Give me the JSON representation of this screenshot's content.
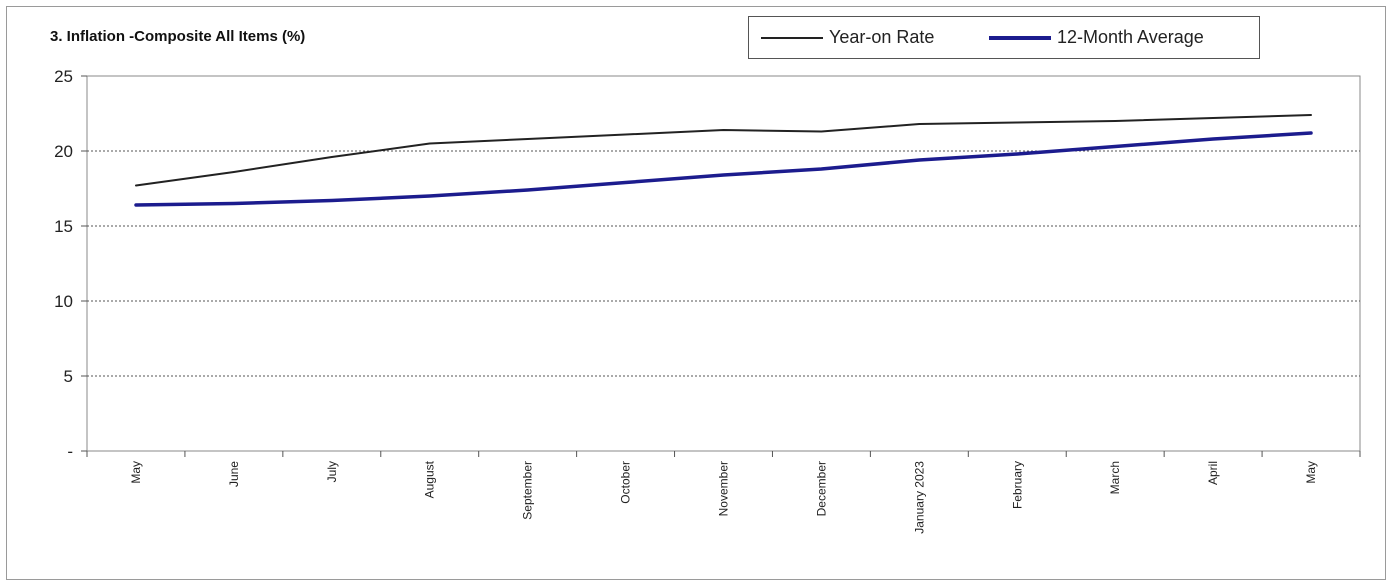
{
  "chart_data": {
    "type": "line",
    "title": "3. Inflation -Composite All Items (%)",
    "categories": [
      "May",
      "June",
      "July",
      "August",
      "September",
      "October",
      "November",
      "December",
      "January 2023",
      "February",
      "March",
      "April",
      "May"
    ],
    "series": [
      {
        "name": "Year-on Rate",
        "color": "#222222",
        "values": [
          17.7,
          18.6,
          19.6,
          20.5,
          20.8,
          21.1,
          21.4,
          21.3,
          21.8,
          21.9,
          22.0,
          22.2,
          22.4
        ]
      },
      {
        "name": "12-Month Average",
        "color": "#1c1c8e",
        "values": [
          16.4,
          16.5,
          16.7,
          17.0,
          17.4,
          17.9,
          18.4,
          18.8,
          19.4,
          19.8,
          20.3,
          20.8,
          21.2
        ]
      }
    ],
    "y_ticks": [
      "-",
      "5",
      "10",
      "15",
      "20",
      "25"
    ],
    "ylim": [
      0,
      25
    ],
    "grid": "horizontal dashed",
    "legend_position": "top-right"
  }
}
